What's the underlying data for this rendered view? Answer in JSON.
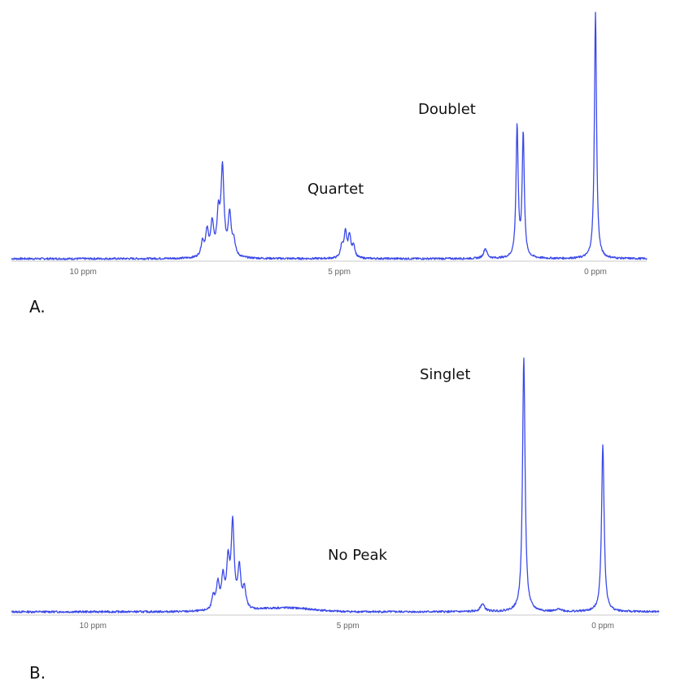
{
  "chart_data": [
    {
      "type": "line",
      "panel_label": "A.",
      "x_unit": "ppm",
      "x_reversed": true,
      "xlim": [
        11.4,
        -1.0
      ],
      "ylim": [
        0,
        1.0
      ],
      "tick_labels": [
        {
          "value": 10,
          "label": "10 ppm"
        },
        {
          "value": 5,
          "label": "5 ppm"
        },
        {
          "value": 0,
          "label": "0 ppm"
        }
      ],
      "annotations": [
        {
          "text": "Doublet",
          "x": 1.9,
          "y": 0.62
        },
        {
          "text": "Quartet",
          "x": 5.1,
          "y": 0.28
        }
      ],
      "peaks": [
        {
          "x": 7.67,
          "y": 0.06,
          "w": 0.035
        },
        {
          "x": 7.58,
          "y": 0.1,
          "w": 0.035
        },
        {
          "x": 7.48,
          "y": 0.13,
          "w": 0.035
        },
        {
          "x": 7.36,
          "y": 0.16,
          "w": 0.035
        },
        {
          "x": 7.28,
          "y": 0.35,
          "w": 0.035
        },
        {
          "x": 7.14,
          "y": 0.17,
          "w": 0.035
        },
        {
          "x": 7.06,
          "y": 0.06,
          "w": 0.035
        },
        {
          "x": 4.95,
          "y": 0.05,
          "w": 0.03
        },
        {
          "x": 4.88,
          "y": 0.1,
          "w": 0.03
        },
        {
          "x": 4.8,
          "y": 0.09,
          "w": 0.03
        },
        {
          "x": 4.72,
          "y": 0.05,
          "w": 0.03
        },
        {
          "x": 2.15,
          "y": 0.04,
          "w": 0.04
        },
        {
          "x": 1.53,
          "y": 0.53,
          "w": 0.025
        },
        {
          "x": 1.41,
          "y": 0.5,
          "w": 0.025
        },
        {
          "x": 0.0,
          "y": 1.0,
          "w": 0.025
        }
      ],
      "broad_humps": []
    },
    {
      "type": "line",
      "panel_label": "B.",
      "x_unit": "ppm",
      "x_reversed": true,
      "xlim": [
        11.6,
        -1.1
      ],
      "ylim": [
        0,
        1.0
      ],
      "tick_labels": [
        {
          "value": 10,
          "label": "10 ppm"
        },
        {
          "value": 5,
          "label": "5 ppm"
        },
        {
          "value": 0,
          "label": "0 ppm"
        }
      ],
      "annotations": [
        {
          "text": "Singlet",
          "x": 2.6,
          "y": 0.92
        },
        {
          "text": "No Peak",
          "x": 5.2,
          "y": 0.2
        }
      ],
      "peaks": [
        {
          "x": 7.64,
          "y": 0.05,
          "w": 0.035
        },
        {
          "x": 7.55,
          "y": 0.1,
          "w": 0.035
        },
        {
          "x": 7.45,
          "y": 0.12,
          "w": 0.035
        },
        {
          "x": 7.35,
          "y": 0.18,
          "w": 0.035
        },
        {
          "x": 7.26,
          "y": 0.33,
          "w": 0.035
        },
        {
          "x": 7.13,
          "y": 0.16,
          "w": 0.035
        },
        {
          "x": 7.03,
          "y": 0.08,
          "w": 0.035
        },
        {
          "x": 2.36,
          "y": 0.03,
          "w": 0.05
        },
        {
          "x": 1.55,
          "y": 1.0,
          "w": 0.03
        },
        {
          "x": 0.85,
          "y": 0.01,
          "w": 0.05
        },
        {
          "x": 0.0,
          "y": 0.66,
          "w": 0.03
        }
      ],
      "broad_humps": [
        {
          "x": 6.2,
          "y": 0.015,
          "w": 0.7
        }
      ]
    }
  ]
}
